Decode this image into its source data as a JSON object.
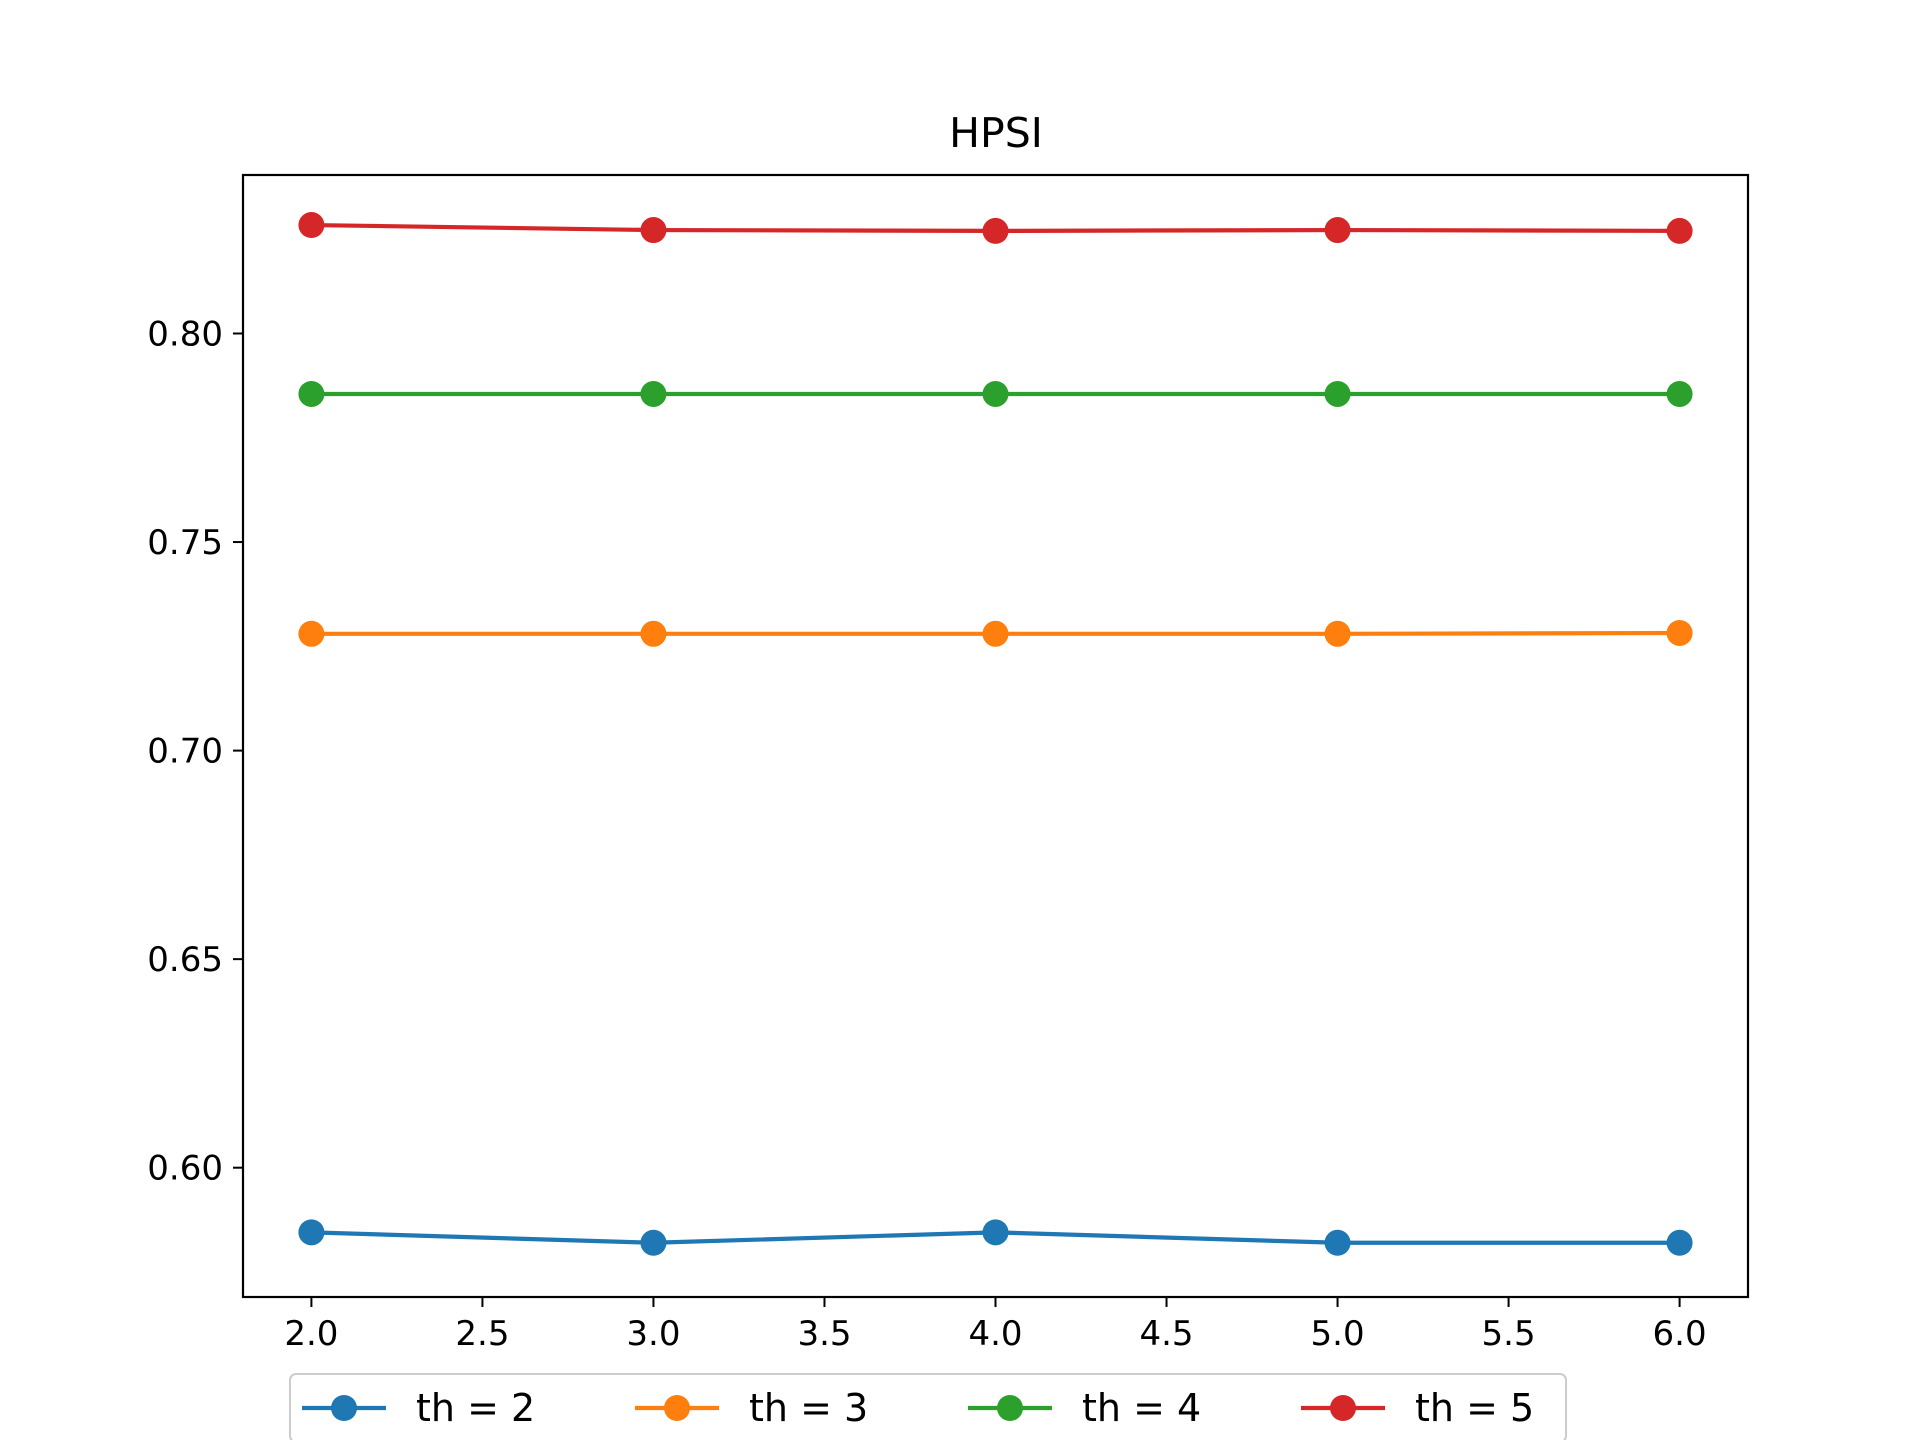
{
  "chart_data": {
    "type": "line",
    "title": "HPSI",
    "xlabel": "",
    "ylabel": "",
    "x": [
      2.0,
      3.0,
      4.0,
      5.0,
      6.0
    ],
    "xlim": [
      1.8,
      6.2
    ],
    "ylim": [
      0.569,
      0.838
    ],
    "x_ticks": [
      "2.0",
      "2.5",
      "3.0",
      "3.5",
      "4.0",
      "4.5",
      "5.0",
      "5.5",
      "6.0"
    ],
    "y_ticks": [
      "0.60",
      "0.65",
      "0.70",
      "0.75",
      "0.80"
    ],
    "grid": false,
    "legend_position": "bottom-center",
    "series": [
      {
        "name": "th = 2",
        "color": "#1f77b4",
        "values": [
          0.5845,
          0.582,
          0.5845,
          0.582,
          0.582
        ]
      },
      {
        "name": "th = 3",
        "color": "#ff7f0e",
        "values": [
          0.728,
          0.728,
          0.728,
          0.728,
          0.7282
        ]
      },
      {
        "name": "th = 4",
        "color": "#2ca02c",
        "values": [
          0.7855,
          0.7855,
          0.7855,
          0.7855,
          0.7855
        ]
      },
      {
        "name": "th = 5",
        "color": "#d62728",
        "values": [
          0.826,
          0.8248,
          0.8246,
          0.8248,
          0.8246
        ]
      }
    ]
  }
}
